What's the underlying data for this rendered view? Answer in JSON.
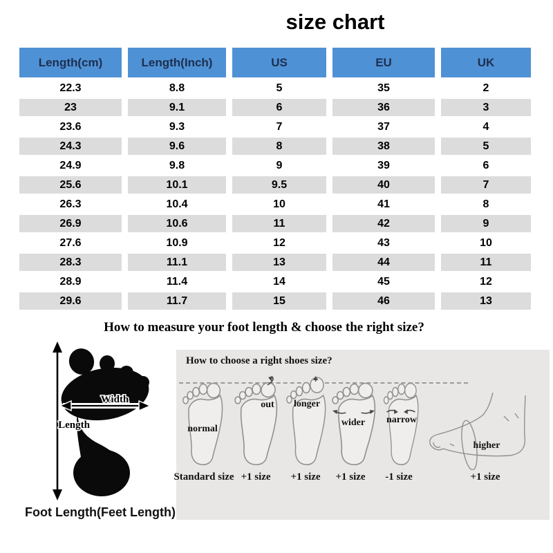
{
  "title": "size chart",
  "size_table": {
    "headers": [
      "Length(cm)",
      "Length(Inch)",
      "US",
      "EU",
      "UK"
    ],
    "rows": [
      [
        "22.3",
        "8.8",
        "5",
        "35",
        "2"
      ],
      [
        "23",
        "9.1",
        "6",
        "36",
        "3"
      ],
      [
        "23.6",
        "9.3",
        "7",
        "37",
        "4"
      ],
      [
        "24.3",
        "9.6",
        "8",
        "38",
        "5"
      ],
      [
        "24.9",
        "9.8",
        "9",
        "39",
        "6"
      ],
      [
        "25.6",
        "10.1",
        "9.5",
        "40",
        "7"
      ],
      [
        "26.3",
        "10.4",
        "10",
        "41",
        "8"
      ],
      [
        "26.9",
        "10.6",
        "11",
        "42",
        "9"
      ],
      [
        "27.6",
        "10.9",
        "12",
        "43",
        "10"
      ],
      [
        "28.3",
        "11.1",
        "13",
        "44",
        "11"
      ],
      [
        "28.9",
        "11.4",
        "14",
        "45",
        "12"
      ],
      [
        "29.6",
        "11.7",
        "15",
        "46",
        "13"
      ]
    ]
  },
  "measure_section": {
    "heading": "How to measure your foot length & choose the right size?",
    "foot_diagram": {
      "length_label": "Length",
      "width_label": "Width",
      "caption": "Foot Length(Feet Length)"
    },
    "choose_panel": {
      "heading": "How to choose a right shoes size?",
      "feet": [
        {
          "label": "normal",
          "size": "Standard size"
        },
        {
          "label": "out",
          "size": "+1 size"
        },
        {
          "label": "longer",
          "size": "+1 size"
        },
        {
          "label": "wider",
          "size": "+1 size"
        },
        {
          "label": "narrow",
          "size": "-1 size"
        },
        {
          "label": "higher",
          "size": "+1 size"
        }
      ]
    }
  },
  "colors": {
    "header_bg": "#4f91d5",
    "header_text": "#1d2f4f",
    "alt_row_bg": "#dcdcdc",
    "panel_bg": "#e8e7e5",
    "title_color": "#000000"
  }
}
